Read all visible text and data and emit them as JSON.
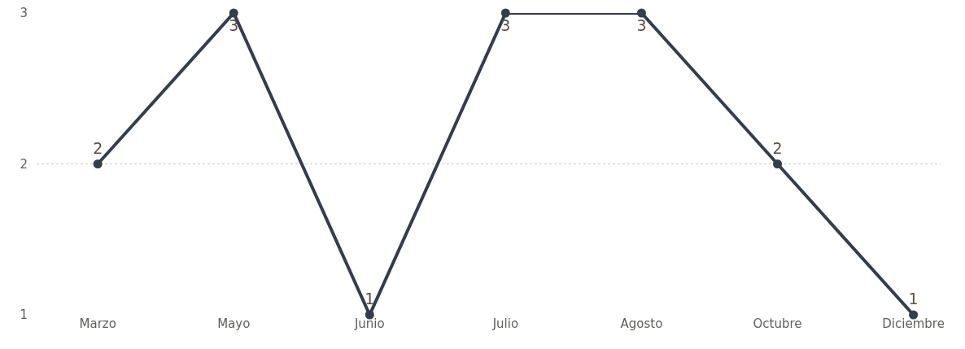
{
  "chart_data": {
    "type": "line",
    "categories": [
      "Marzo",
      "Mayo",
      "Junio",
      "Julio",
      "Agosto",
      "Octubre",
      "Diciembre"
    ],
    "series": [
      {
        "color": "#343d4c",
        "values": [
          2,
          3,
          1,
          3,
          3,
          2,
          1
        ]
      }
    ],
    "ylim": [
      1,
      3
    ],
    "yticks": [
      1,
      2,
      3
    ],
    "grid": "y",
    "marker": "circle",
    "line_style": "solid",
    "data_labels": true,
    "legend": false
  }
}
